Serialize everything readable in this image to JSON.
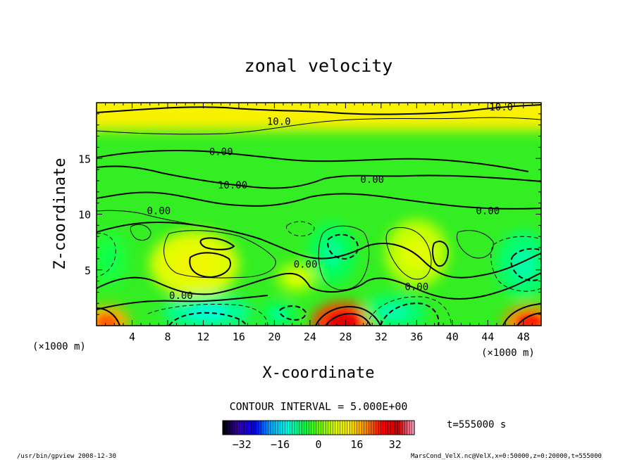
{
  "chart_data": {
    "type": "heatmap",
    "title": "zonal velocity",
    "xlabel": "X-coordinate",
    "ylabel": "Z-coordinate",
    "x_unit_left": "(×1000 m)",
    "x_unit_right": "(×1000 m)",
    "xlim": [
      0,
      50
    ],
    "ylim": [
      0,
      20
    ],
    "x_ticks": [
      4,
      8,
      12,
      16,
      20,
      24,
      28,
      32,
      36,
      40,
      44,
      48
    ],
    "y_ticks": [
      5,
      10,
      15
    ],
    "contour_interval_label": "CONTOUR INTERVAL = 5.000E+00",
    "contour_labels": [
      {
        "text": "10.0",
        "x": 45.5,
        "y": 19.3
      },
      {
        "text": "10.0",
        "x": 20.5,
        "y": 18.0
      },
      {
        "text": "0.00",
        "x": 14.0,
        "y": 15.3
      },
      {
        "text": "10.00",
        "x": 15.3,
        "y": 12.3
      },
      {
        "text": "0.00",
        "x": 31.0,
        "y": 12.8
      },
      {
        "text": "0.00",
        "x": 7.0,
        "y": 10.0
      },
      {
        "text": "0.00",
        "x": 44.0,
        "y": 10.0
      },
      {
        "text": "0.00",
        "x": 23.5,
        "y": 5.2
      },
      {
        "text": "0.00",
        "x": 36.0,
        "y": 3.2
      },
      {
        "text": "0.00",
        "x": 9.5,
        "y": 2.4
      }
    ],
    "colorbar": {
      "ticks": [
        -32,
        -16,
        0,
        16,
        32
      ],
      "range": [
        -40,
        40
      ],
      "colors": [
        "#000000",
        "#3300aa",
        "#0000ff",
        "#00aaff",
        "#00ffee",
        "#00ff55",
        "#66ff00",
        "#ddff00",
        "#ffee00",
        "#ff8800",
        "#ff0000",
        "#cc0000",
        "#ffaacc"
      ]
    },
    "time_label": "t=555000 s",
    "field_sketch": {
      "background": "#33ee22",
      "top_band": {
        "y_range": [
          17.5,
          20
        ],
        "value": 12
      },
      "warm_blobs": [
        {
          "x": 11,
          "y": 5.5,
          "rx": 5,
          "ry": 3,
          "value": 10
        },
        {
          "x": 36,
          "y": 6.5,
          "rx": 3.5,
          "ry": 3,
          "value": 7
        },
        {
          "x": 22.5,
          "y": 4.3,
          "rx": 2.2,
          "ry": 1.3,
          "value": 6
        },
        {
          "x": 27.7,
          "y": 0.3,
          "rx": 3.5,
          "ry": 1.8,
          "value": 30
        },
        {
          "x": 1.2,
          "y": 0.3,
          "rx": 2.5,
          "ry": 1.5,
          "value": 22
        },
        {
          "x": 48.7,
          "y": 0.3,
          "rx": 3,
          "ry": 1.5,
          "value": 25
        }
      ],
      "cool_blobs": [
        {
          "x": 12.5,
          "y": 1.2,
          "rx": 5,
          "ry": 1.6,
          "value": -12
        },
        {
          "x": 33.5,
          "y": 1.2,
          "rx": 3.5,
          "ry": 1.6,
          "value": -10
        },
        {
          "x": 26.5,
          "y": 6.5,
          "rx": 2.6,
          "ry": 2.7,
          "value": -9
        },
        {
          "x": 48,
          "y": 5.5,
          "rx": 3,
          "ry": 3,
          "value": -10
        },
        {
          "x": 1.5,
          "y": 6,
          "rx": 2,
          "ry": 2.5,
          "value": -6
        },
        {
          "x": 20.5,
          "y": 1.0,
          "rx": 2,
          "ry": 1.2,
          "value": -9
        }
      ]
    }
  },
  "footer": {
    "left": "/usr/bin/gpview   2008-12-30",
    "right": "MarsCond_VelX.nc@VelX,x=0:50000,z=0:20000,t=555000"
  }
}
